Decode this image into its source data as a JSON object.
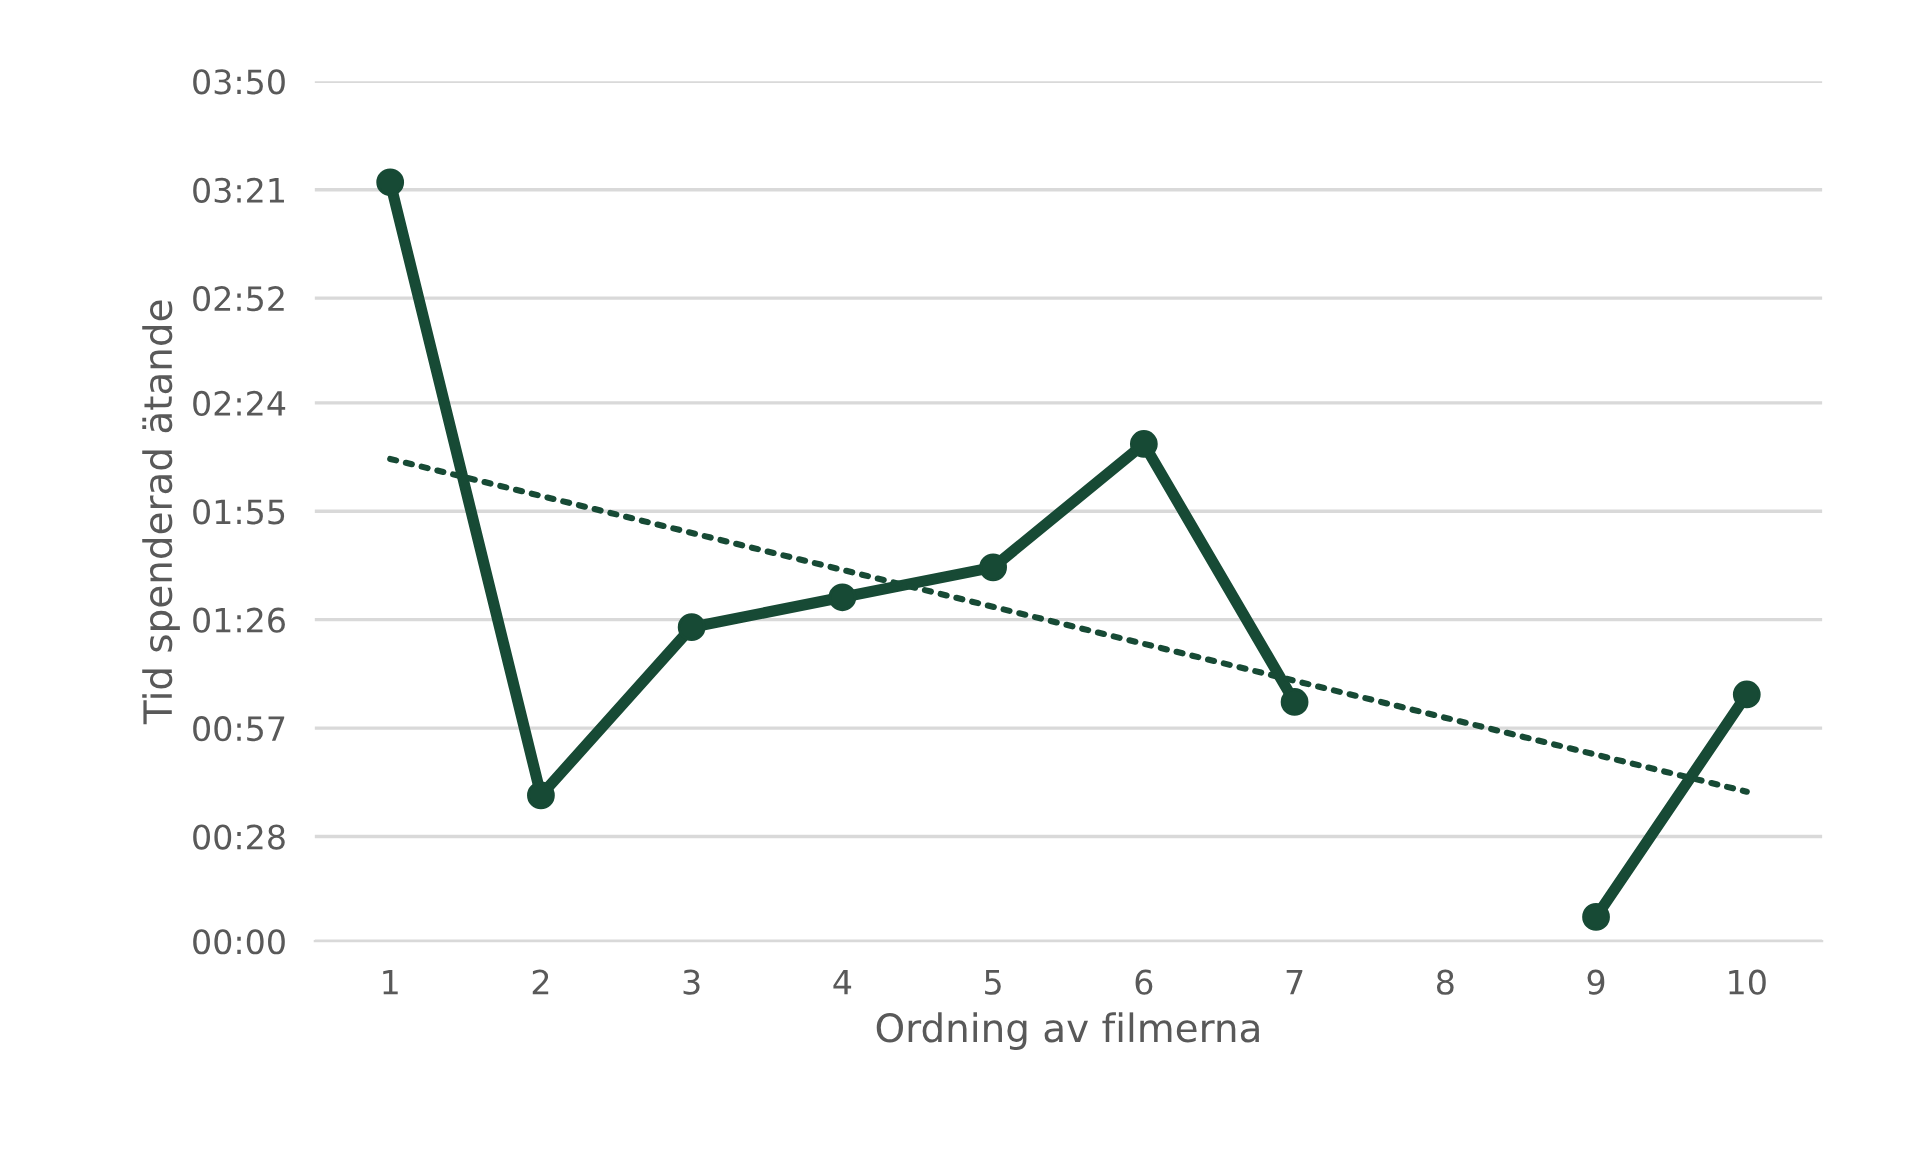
{
  "chart_data": {
    "type": "line",
    "xlabel": "Ordning av filmerna",
    "ylabel": "Tid spenderad ätande",
    "categories": [
      "1",
      "2",
      "3",
      "4",
      "5",
      "6",
      "7",
      "8",
      "9",
      "10"
    ],
    "ylim": [
      0,
      230
    ],
    "yticks": [
      {
        "value": 0,
        "label": "00:00"
      },
      {
        "value": 28,
        "label": "00:28"
      },
      {
        "value": 57,
        "label": "00:57"
      },
      {
        "value": 86,
        "label": "01:26"
      },
      {
        "value": 115,
        "label": "01:55"
      },
      {
        "value": 144,
        "label": "02:24"
      },
      {
        "value": 172,
        "label": "02:52"
      },
      {
        "value": 201,
        "label": "03:21"
      },
      {
        "value": 230,
        "label": "03:50"
      }
    ],
    "grid": "y",
    "legend": false,
    "series": [
      {
        "color": "#174a35",
        "values": [
          203,
          39,
          84,
          92,
          100,
          133,
          64,
          null,
          6.5,
          66
        ],
        "marker": "circle",
        "line_style": "solid"
      },
      {
        "type": "line",
        "color": "#174a35",
        "x": [
          "1",
          "10"
        ],
        "values": [
          129,
          40
        ],
        "marker": "none",
        "line_style": "dotted"
      }
    ]
  }
}
